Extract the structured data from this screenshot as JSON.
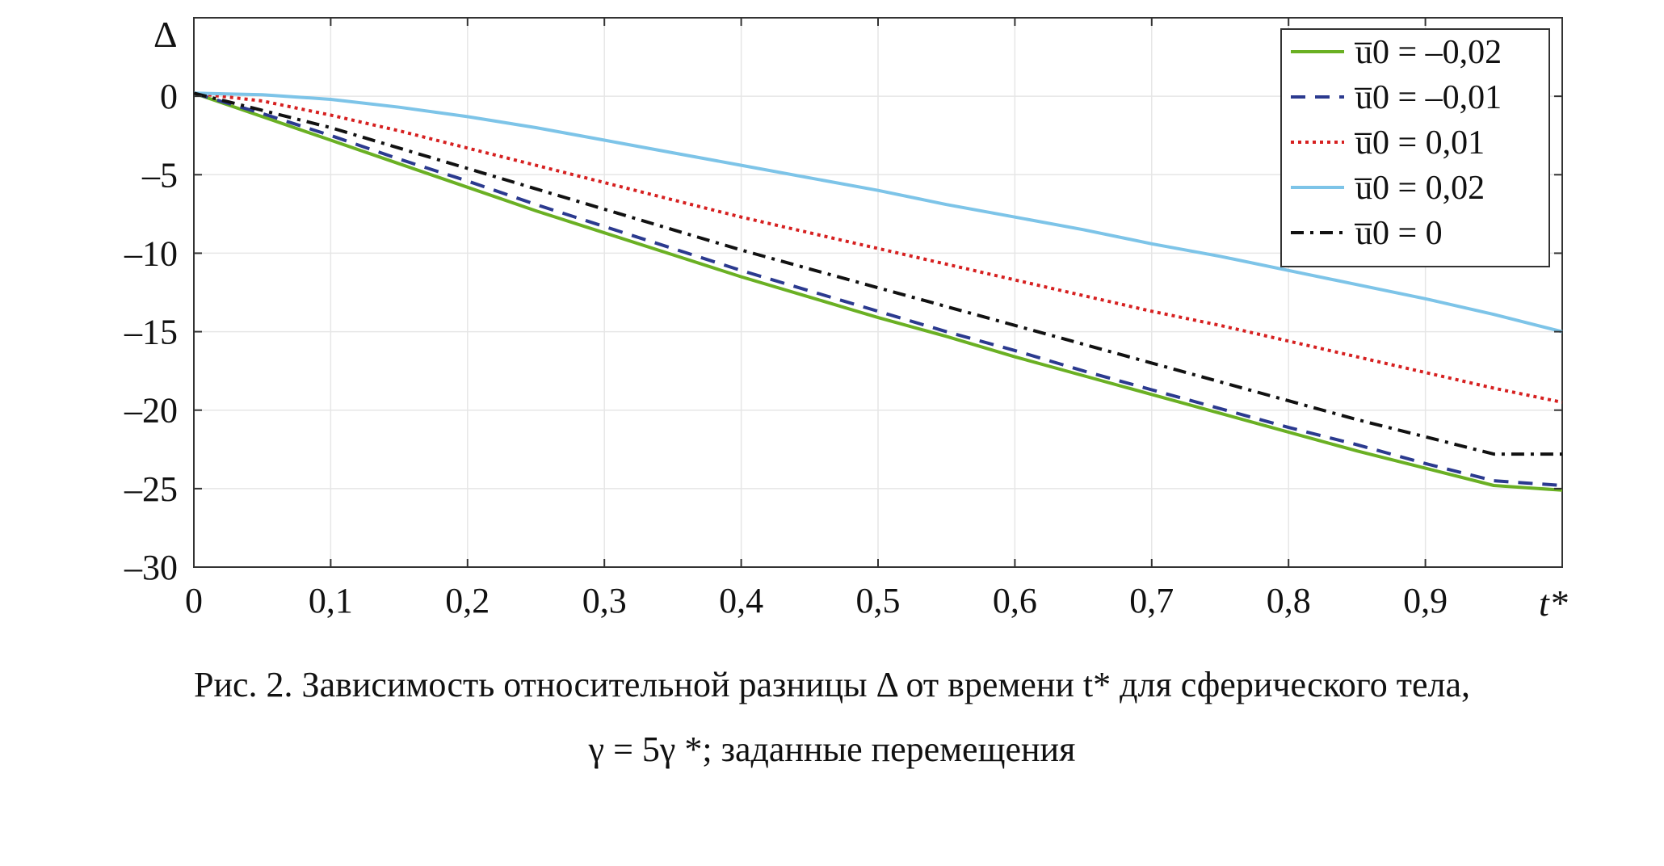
{
  "chart_data": {
    "type": "line",
    "xlabel": "t*",
    "ylabel": "Δ",
    "xlim": [
      0,
      1
    ],
    "ylim": [
      -30,
      5
    ],
    "grid": true,
    "legend_placement": "top-right",
    "x_ticks": [
      0,
      0.1,
      0.2,
      0.3,
      0.4,
      0.5,
      0.6,
      0.7,
      0.8,
      0.9
    ],
    "x_tick_labels": [
      "0",
      "0,1",
      "0,2",
      "0,3",
      "0,4",
      "0,5",
      "0,6",
      "0,7",
      "0,8",
      "0,9"
    ],
    "y_ticks": [
      0,
      -5,
      -10,
      -15,
      -20,
      -25,
      -30
    ],
    "y_tick_labels": [
      "0",
      "–5",
      "–10",
      "–15",
      "–20",
      "–25",
      "–30"
    ],
    "x": [
      0,
      0.05,
      0.1,
      0.15,
      0.2,
      0.25,
      0.3,
      0.35,
      0.4,
      0.45,
      0.5,
      0.55,
      0.6,
      0.65,
      0.7,
      0.75,
      0.8,
      0.85,
      0.9,
      0.95,
      1.0
    ],
    "series": [
      {
        "name": "u̅0 = –0,02",
        "color": "#6ab023",
        "dash": "solid",
        "values": [
          0.2,
          -1.3,
          -2.8,
          -4.3,
          -5.8,
          -7.3,
          -8.7,
          -10.1,
          -11.5,
          -12.8,
          -14.1,
          -15.3,
          -16.6,
          -17.8,
          -19.0,
          -20.2,
          -21.4,
          -22.6,
          -23.7,
          -24.8,
          -25.1
        ]
      },
      {
        "name": "u̅0 = –0,01",
        "color": "#2b3a8f",
        "dash": "dashed",
        "values": [
          0.2,
          -1.1,
          -2.5,
          -4.0,
          -5.4,
          -6.9,
          -8.3,
          -9.7,
          -11.1,
          -12.4,
          -13.7,
          -15.0,
          -16.2,
          -17.5,
          -18.7,
          -19.9,
          -21.1,
          -22.2,
          -23.4,
          -24.5,
          -24.8
        ]
      },
      {
        "name": "u̅0 = 0,01",
        "color": "#d62020",
        "dash": "dotted",
        "values": [
          0.2,
          -0.3,
          -1.2,
          -2.2,
          -3.3,
          -4.4,
          -5.5,
          -6.6,
          -7.7,
          -8.7,
          -9.7,
          -10.7,
          -11.7,
          -12.7,
          -13.7,
          -14.6,
          -15.6,
          -16.6,
          -17.6,
          -18.6,
          -19.5
        ]
      },
      {
        "name": "u̅0 = 0,02",
        "color": "#7dc4e8",
        "dash": "solid",
        "values": [
          0.2,
          0.1,
          -0.2,
          -0.7,
          -1.3,
          -2.0,
          -2.8,
          -3.6,
          -4.4,
          -5.2,
          -6.0,
          -6.9,
          -7.7,
          -8.5,
          -9.4,
          -10.2,
          -11.1,
          -12.0,
          -12.9,
          -13.9,
          -15.0
        ]
      },
      {
        "name": "u̅0 = 0",
        "color": "#111111",
        "dash": "dashdot",
        "values": [
          0.2,
          -0.9,
          -2.0,
          -3.3,
          -4.6,
          -5.9,
          -7.2,
          -8.5,
          -9.8,
          -11.0,
          -12.2,
          -13.4,
          -14.6,
          -15.8,
          -17.0,
          -18.2,
          -19.4,
          -20.6,
          -21.7,
          -22.8,
          -22.8
        ]
      }
    ]
  },
  "caption": {
    "line1": "Рис. 2. Зависимость относительной разницы Δ от времени t* для сферического тела,",
    "line2": "γ = 5γ *; заданные перемещения"
  }
}
